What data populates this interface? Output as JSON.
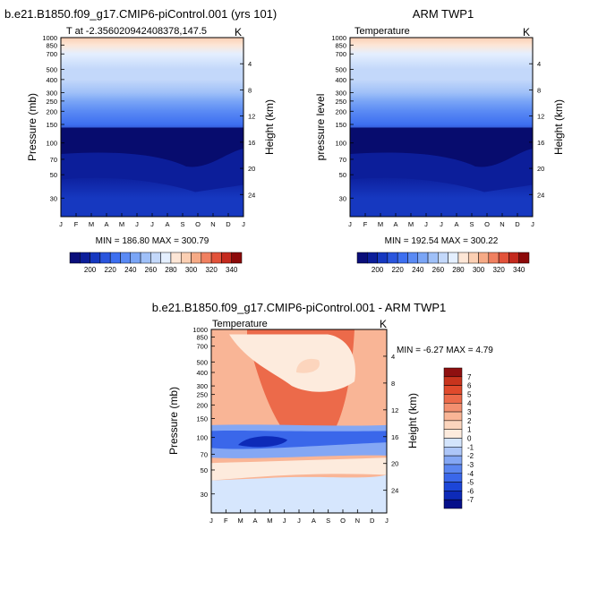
{
  "figure": {
    "panel_left_title": "b.e21.B1850.f09_g17.CMIP6-piControl.001 (yrs 101)",
    "panel_right_title": "ARM TWP1",
    "panel_bottom_title": "b.e21.B1850.f09_g17.CMIP6-piControl.001 - ARM TWP1"
  },
  "chart_data": [
    {
      "type": "heatmap",
      "title": "b.e21.B1850.f09_g17.CMIP6-piControl.001 (yrs 101)",
      "subtitle_left": "T at -2.356020942408378,147.5",
      "subtitle_right": "K",
      "ylabel": "Pressure (mb)",
      "ylabel_right": "Height (km)",
      "xticks": [
        "J",
        "F",
        "M",
        "A",
        "M",
        "J",
        "J",
        "A",
        "S",
        "O",
        "N",
        "D",
        "J"
      ],
      "yticks": [
        30,
        50,
        70,
        100,
        150,
        200,
        250,
        300,
        400,
        500,
        700,
        850,
        1000
      ],
      "yticks_right": [
        24,
        20,
        16,
        12,
        8,
        4
      ],
      "ylim": [
        1000,
        20
      ],
      "stats": "MIN = 186.80 MAX = 300.79",
      "colorbar": {
        "labels": [
          "200",
          "220",
          "240",
          "260",
          "280",
          "300",
          "320",
          "340"
        ],
        "levels": [
          190,
          200,
          210,
          220,
          230,
          240,
          250,
          260,
          270,
          280,
          290,
          300,
          310,
          320,
          330,
          340,
          350
        ],
        "colors": [
          "#0a0e7a",
          "#0c1e9a",
          "#1638c0",
          "#2a55dd",
          "#3d6ff0",
          "#5a8af4",
          "#7aa5f6",
          "#9fc0f8",
          "#c3d8fa",
          "#e4efff",
          "#fde6d6",
          "#fbcfb3",
          "#f6aa86",
          "#f08060",
          "#e2523a",
          "#c42a1e",
          "#8c0a0a"
        ],
        "placement": "bottom"
      },
      "profile": {
        "pressure": [
          1000,
          850,
          700,
          500,
          400,
          300,
          250,
          200,
          150,
          100,
          70,
          50,
          30,
          20
        ],
        "value": [
          300.8,
          296,
          289,
          279,
          272,
          262,
          255,
          246,
          236,
          198,
          190,
          200,
          210,
          214
        ]
      }
    },
    {
      "type": "heatmap",
      "title": "ARM TWP1",
      "subtitle_left": "Temperature",
      "subtitle_right": "K",
      "ylabel": "pressure level",
      "ylabel_right": "Height (km)",
      "xticks": [
        "J",
        "F",
        "M",
        "A",
        "M",
        "J",
        "J",
        "A",
        "S",
        "O",
        "N",
        "D",
        "J"
      ],
      "yticks": [
        30,
        50,
        70,
        100,
        150,
        200,
        250,
        300,
        400,
        500,
        700,
        850,
        1000
      ],
      "yticks_right": [
        24,
        20,
        16,
        12,
        8,
        4
      ],
      "ylim": [
        1000,
        20
      ],
      "stats": "MIN = 192.54 MAX = 300.22",
      "colorbar": {
        "labels": [
          "200",
          "220",
          "240",
          "260",
          "280",
          "300",
          "320",
          "340"
        ],
        "placement": "bottom"
      }
    },
    {
      "type": "heatmap",
      "title": "b.e21.B1850.f09_g17.CMIP6-piControl.001 - ARM TWP1",
      "subtitle_left": "Temperature",
      "subtitle_right": "K",
      "ylabel": "Pressure (mb)",
      "ylabel_right": "Height (km)",
      "xticks": [
        "J",
        "F",
        "M",
        "A",
        "M",
        "J",
        "J",
        "A",
        "S",
        "O",
        "N",
        "D",
        "J"
      ],
      "yticks": [
        30,
        50,
        70,
        100,
        150,
        200,
        250,
        300,
        400,
        500,
        700,
        850,
        1000
      ],
      "yticks_right": [
        24,
        20,
        16,
        12,
        8,
        4
      ],
      "ylim": [
        1000,
        20
      ],
      "stats": "MIN = -6.27 MAX =  4.79",
      "colorbar": {
        "labels": [
          "7",
          "6",
          "5",
          "4",
          "3",
          "2",
          "1",
          "0",
          "-1",
          "-2",
          "-3",
          "-4",
          "-5",
          "-6",
          "-7"
        ],
        "levels": [
          -8,
          -7,
          -6,
          -5,
          -4,
          -3,
          -2,
          -1,
          0,
          1,
          2,
          3,
          4,
          5,
          6,
          7,
          8
        ],
        "colors": [
          "#05108a",
          "#0d2ab8",
          "#1c46d8",
          "#3a67ea",
          "#5b86f0",
          "#84a7f4",
          "#adc6f8",
          "#d3e4fc",
          "#fdebdd",
          "#fcd5bd",
          "#f9b596",
          "#f39070",
          "#ec6a4a",
          "#e04a2c",
          "#c8341d",
          "#8f1010"
        ],
        "placement": "right"
      }
    }
  ]
}
